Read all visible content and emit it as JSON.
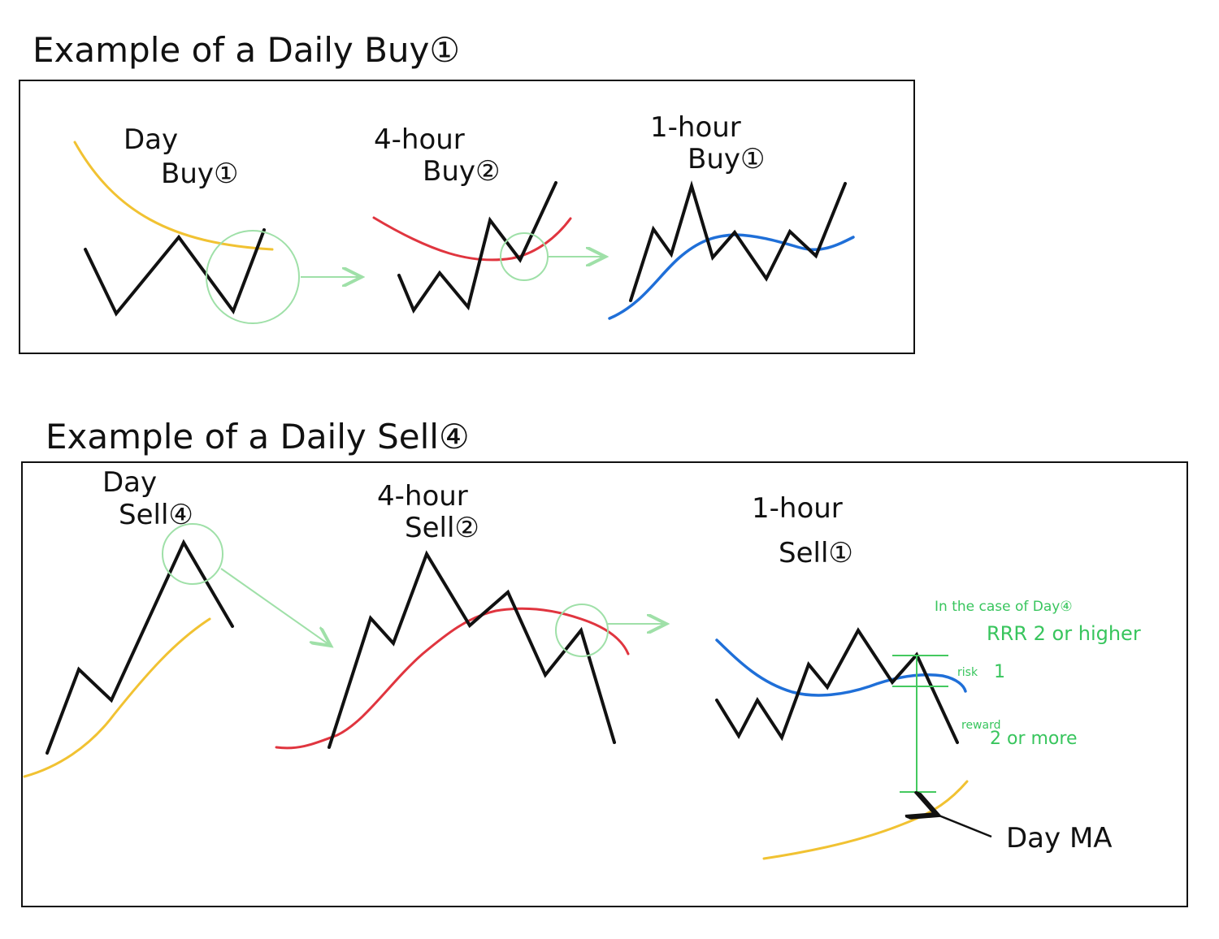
{
  "buy_section": {
    "title": "Example of a Daily Buy①",
    "day_label": "Day",
    "day_signal": "Buy①",
    "four_hour_label": "4-hour",
    "four_hour_signal": "Buy②",
    "one_hour_label": "1-hour",
    "one_hour_signal": "Buy①"
  },
  "sell_section": {
    "title": "Example of a Daily Sell④",
    "day_label": "Day",
    "day_signal": "Sell④",
    "four_hour_label": "4-hour",
    "four_hour_signal": "Sell②",
    "one_hour_label": "1-hour",
    "one_hour_signal": "Sell①",
    "note_case": "In the case of Day④",
    "note_rrr": "RRR 2 or higher",
    "risk_label": "risk",
    "risk_value": "1",
    "reward_label": "reward",
    "reward_value": "2 or more",
    "day_ma_label": "Day MA"
  },
  "colors": {
    "price_line": "#111111",
    "day_ma": "#f1c232",
    "four_hour_ma": "#e0353f",
    "one_hour_ma": "#1f6fd8",
    "highlight": "#9fe0a8",
    "annotation": "#38c55d"
  }
}
